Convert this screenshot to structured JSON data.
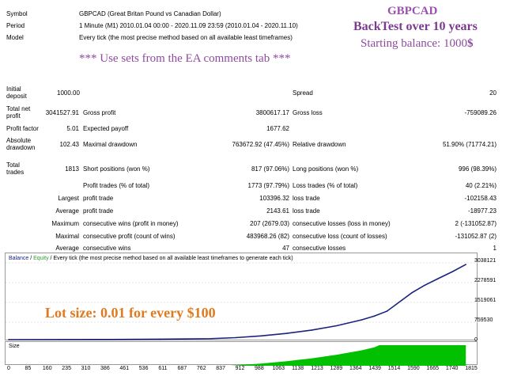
{
  "header": {
    "rows": [
      {
        "label": "Symbol",
        "value": "GBPCAD (Great Britan Pound vs Canadian Dollar)"
      },
      {
        "label": "Period",
        "value": "1 Minute (M1) 2010.01.04 00:00 - 2020.11.09 23:59 (2010.01.04 - 2020.11.10)"
      },
      {
        "label": "Model",
        "value": "Every tick (the most precise method based on all available least timeframes)"
      }
    ]
  },
  "overlay": {
    "symbol": "GBPCAD",
    "backtest": "BackTest over 10 years",
    "balance_prefix": "Starting balance: 1000",
    "balance_currency": "$",
    "sets_note": "*** Use sets from the EA comments tab ***",
    "lot_note": "Lot size: 0.01 for every $100",
    "colors": {
      "purple": "#7b3a8e",
      "orange": "#e07a1e",
      "equity_line": "#1a237e",
      "size_fill": "#00c000"
    }
  },
  "stats": {
    "initial_deposit_label": "Initial\ndeposit",
    "initial_deposit": "1000.00",
    "spread_label": "Spread",
    "spread": "20",
    "total_net_profit_label": "Total net\nprofit",
    "total_net_profit": "3041527.91",
    "gross_profit_label": "Gross profit",
    "gross_profit": "3800617.17",
    "gross_loss_label": "Gross loss",
    "gross_loss": "-759089.26",
    "profit_factor_label": "Profit factor",
    "profit_factor": "5.01",
    "expected_payoff_label": "Expected payoff",
    "expected_payoff": "1677.62",
    "absolute_drawdown_label": "Absolute\ndrawdown",
    "absolute_drawdown": "102.43",
    "maximal_drawdown_label": "Maximal drawdown",
    "maximal_drawdown": "763672.92 (47.45%)",
    "relative_drawdown_label": "Relative drawdown",
    "relative_drawdown": "51.90% (71774.21)",
    "total_trades_label": "Total\ntrades",
    "total_trades": "1813",
    "short_positions_label": "Short positions (won %)",
    "short_positions": "817 (97.06%)",
    "long_positions_label": "Long positions (won %)",
    "long_positions": "996 (98.39%)",
    "profit_trades_label": "Profit trades (% of total)",
    "profit_trades": "1773 (97.79%)",
    "loss_trades_label": "Loss trades (% of total)",
    "loss_trades": "40 (2.21%)",
    "largest_label": "Largest",
    "largest_profit_label": "profit trade",
    "largest_profit": "103396.32",
    "largest_loss_label": "loss trade",
    "largest_loss": "-102158.43",
    "average_label": "Average",
    "average_profit_label": "profit trade",
    "average_profit": "2143.61",
    "average_loss_label": "loss trade",
    "average_loss": "-18977.23",
    "maximum_label": "Maximum",
    "max_cons_wins_label": "consecutive wins (profit in money)",
    "max_cons_wins": "207 (2679.03)",
    "max_cons_losses_label": "consecutive losses (loss in money)",
    "max_cons_losses": "2 (-131052.87)",
    "maximal_label": "Maximal",
    "maximal_cons_profit_label": "consecutive profit (count of wins)",
    "maximal_cons_profit": "483968.26 (82)",
    "maximal_cons_loss_label": "consecutive loss (count of losses)",
    "maximal_cons_loss": "-131052.87 (2)",
    "average2_label": "Average",
    "avg_cons_wins_label": "consecutive wins",
    "avg_cons_wins": "47",
    "avg_cons_losses_label": "consecutive losses",
    "avg_cons_losses": "1"
  },
  "chart_data": [
    {
      "type": "line",
      "legend_balance": "Balance",
      "legend_sep": " / ",
      "legend_equity": "Equity",
      "legend_rest": " / Every tick (the most precise method based on all available least timeframes to generate each tick)",
      "y_ticks": [
        "3038121",
        "2278591",
        "1519061",
        "759530",
        "0"
      ],
      "ylim": [
        0,
        3200000
      ],
      "xlim": [
        0,
        1850
      ],
      "series": [
        {
          "x": [
            0,
            200,
            400,
            600,
            800,
            900,
            1000,
            1100,
            1200,
            1300,
            1400,
            1450,
            1500,
            1560,
            1600,
            1650,
            1700,
            1760,
            1813
          ],
          "y": [
            1000,
            3000,
            8000,
            18000,
            40000,
            80000,
            150000,
            250000,
            380000,
            560000,
            800000,
            950000,
            1150000,
            1600000,
            1900000,
            2200000,
            2450000,
            2750000,
            3038121
          ]
        }
      ]
    },
    {
      "type": "area",
      "label": "Size",
      "x_ticks": [
        "0",
        "85",
        "160",
        "235",
        "310",
        "386",
        "461",
        "536",
        "611",
        "687",
        "762",
        "837",
        "912",
        "988",
        "1063",
        "1138",
        "1213",
        "1289",
        "1364",
        "1439",
        "1514",
        "1590",
        "1665",
        "1740",
        "1815"
      ],
      "xlim": [
        0,
        1850
      ],
      "series": [
        {
          "x": [
            0,
            880,
            900,
            1000,
            1100,
            1200,
            1300,
            1400,
            1450,
            1470,
            1813
          ],
          "y": [
            0.01,
            0.05,
            0.5,
            3,
            6,
            10,
            15,
            21,
            25,
            28,
            28
          ]
        }
      ]
    }
  ]
}
